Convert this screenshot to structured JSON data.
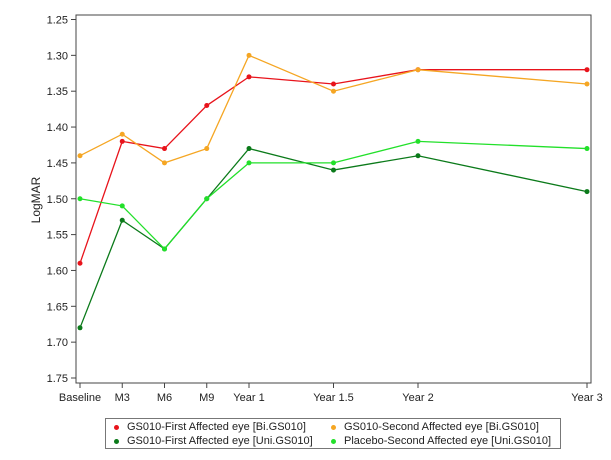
{
  "chart_data": {
    "type": "line",
    "title": "",
    "xlabel": "",
    "ylabel": "LogMAR",
    "categories": [
      "Baseline",
      "M3",
      "M6",
      "M9",
      "Year 1",
      "Year 1.5",
      "Year 2",
      "Year 3"
    ],
    "x_months": [
      0,
      3,
      6,
      9,
      12,
      18,
      24,
      36
    ],
    "ylim": [
      1.25,
      1.75
    ],
    "y_inverted": true,
    "yticks": [
      "1.25",
      "1.30",
      "1.35",
      "1.40",
      "1.45",
      "1.50",
      "1.55",
      "1.60",
      "1.65",
      "1.70",
      "1.75"
    ],
    "legend_placement": "bottom",
    "series": [
      {
        "name": "GS010-First Affected eye [Bi.GS010]",
        "color": "#e8131b",
        "values": [
          1.59,
          1.42,
          1.43,
          1.37,
          1.33,
          1.34,
          1.32,
          1.32
        ]
      },
      {
        "name": "GS010-Second Affected eye [Bi.GS010]",
        "color": "#f5a623",
        "values": [
          1.44,
          1.41,
          1.45,
          1.43,
          1.3,
          1.35,
          1.32,
          1.34
        ]
      },
      {
        "name": "GS010-First Affected eye [Uni.GS010]",
        "color": "#0b7a1a",
        "values": [
          1.68,
          1.53,
          1.57,
          1.5,
          1.43,
          1.46,
          1.44,
          1.49
        ]
      },
      {
        "name": "Placebo-Second Affected eye [Uni.GS010]",
        "color": "#22e02a",
        "values": [
          1.5,
          1.51,
          1.57,
          1.5,
          1.45,
          1.45,
          1.42,
          1.43
        ]
      }
    ]
  }
}
